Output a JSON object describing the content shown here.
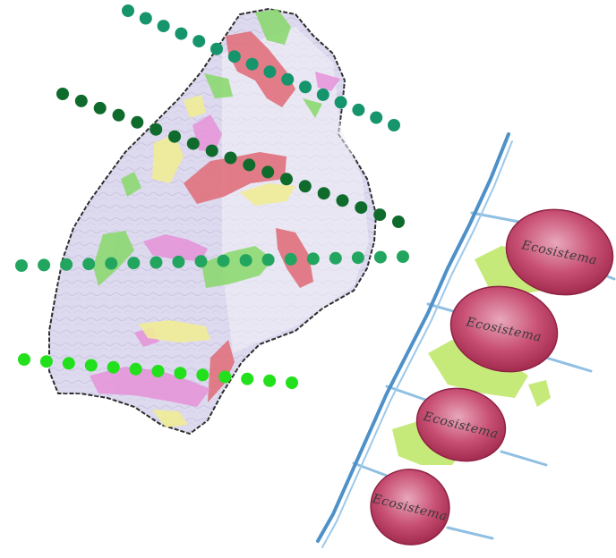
{
  "colors": {
    "background": "#ffffff",
    "map_base": "#dcd8ec",
    "map_outline": "#2b2b2b",
    "patch_red": "#e0707c",
    "patch_pink": "#e692d8",
    "patch_green": "#88d86a",
    "patch_yellow": "#f0ec96",
    "trunk_blue": "#6fa9d6",
    "ecosystem_fill": "#c23a62",
    "ecosystem_light": "#e4a0b4",
    "foliage": "#b8e65a",
    "dotted_line_1": "#16946c",
    "dotted_line_2": "#0e6b2c",
    "dotted_line_3": "#22a55e",
    "dotted_line_4": "#22e01c"
  },
  "icons": {
    "map": "territory-map-icon",
    "corridor": "dotted-corridor-line",
    "ecosystem": "ecosystem-node-icon"
  },
  "ecosystems": [
    {
      "label": "Ecosistema"
    },
    {
      "label": "Ecosistema"
    },
    {
      "label": "Ecosistema"
    },
    {
      "label": "Ecosistema"
    }
  ]
}
